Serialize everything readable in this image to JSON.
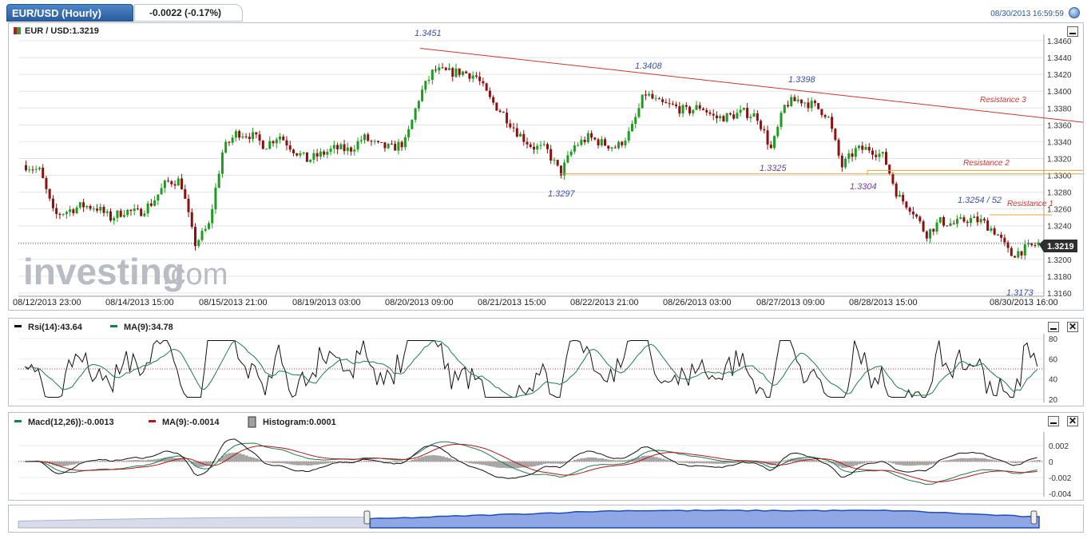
{
  "header": {
    "title": "EUR/USD (Hourly)",
    "change": "-0.0022 (-0.17%)",
    "timestamp": "08/30/2013 16:59:59"
  },
  "main_chart": {
    "label": "EUR / USD:1.3219",
    "last_price": "1.3219",
    "logo_text": "investing",
    "logo_suffix": ".com",
    "y_ticks": [
      "1.3460",
      "1.3440",
      "1.3420",
      "1.3400",
      "1.3380",
      "1.3360",
      "1.3340",
      "1.3320",
      "1.3300",
      "1.3280",
      "1.3260",
      "1.3240",
      "1.3220",
      "1.3200",
      "1.3180",
      "1.3160"
    ],
    "x_labels": [
      "08/12/2013 23:00",
      "08/14/2013 15:00",
      "08/15/2013 21:00",
      "08/19/2013 03:00",
      "08/20/2013 09:00",
      "08/21/2013 15:00",
      "08/22/2013 21:00",
      "08/26/2013 03:00",
      "08/27/2013 09:00",
      "08/28/2013 15:00",
      "08/30/2013 16:00"
    ],
    "annotations": [
      "1.3451",
      "1.3408",
      "1.3398",
      "1.3325",
      "1.3297",
      "1.3304",
      "1.3254 / 52",
      "1.3173"
    ],
    "resistance_labels": [
      "Resistance 3",
      "Resistance 2",
      "Resistance 1"
    ]
  },
  "rsi_panel": {
    "rsi_label": "Rsi(14):43.64",
    "ma_label": "MA(9):34.78",
    "y_ticks": [
      "80",
      "60",
      "40",
      "20"
    ]
  },
  "macd_panel": {
    "macd_label": "Macd(12,26)):-0.0013",
    "ma_label": "MA(9):-0.0014",
    "hist_label": "Histogram:0.0001",
    "y_ticks": [
      "0.002",
      "0",
      "-0.002",
      "-0.004"
    ]
  },
  "colors": {
    "up": "#1f9b1f",
    "down": "#8b1111",
    "resistance": "#d0352f",
    "support": "#e3a33a",
    "annotation": "#3d4fa8",
    "navigator": "#3a62c9"
  },
  "chart_data": {
    "type": "candlestick",
    "title": "EUR/USD (Hourly)",
    "ylim": [
      1.316,
      1.3465
    ],
    "x_labels": [
      "08/12/2013 23:00",
      "08/14/2013 15:00",
      "08/15/2013 21:00",
      "08/19/2013 03:00",
      "08/20/2013 09:00",
      "08/21/2013 15:00",
      "08/22/2013 21:00",
      "08/26/2013 03:00",
      "08/27/2013 09:00",
      "08/28/2013 15:00",
      "08/30/2013 16:00"
    ],
    "price_path": [
      1.3312,
      1.3305,
      1.3252,
      1.3258,
      1.3264,
      1.3262,
      1.3249,
      1.3258,
      1.3255,
      1.3268,
      1.3292,
      1.3294,
      1.3218,
      1.324,
      1.333,
      1.3351,
      1.3348,
      1.3335,
      1.3348,
      1.3331,
      1.3318,
      1.3325,
      1.3332,
      1.333,
      1.3345,
      1.3335,
      1.3332,
      1.334,
      1.3395,
      1.3425,
      1.3422,
      1.3423,
      1.3418,
      1.339,
      1.3372,
      1.335,
      1.3334,
      1.3331,
      1.3302,
      1.3335,
      1.3345,
      1.3338,
      1.3333,
      1.3352,
      1.3398,
      1.3385,
      1.3382,
      1.3376,
      1.3382,
      1.3368,
      1.337,
      1.3375,
      1.337,
      1.333,
      1.3385,
      1.339,
      1.3383,
      1.3372,
      1.331,
      1.333,
      1.3332,
      1.3322,
      1.3275,
      1.326,
      1.323,
      1.3245,
      1.3242,
      1.3248,
      1.3245,
      1.3232,
      1.3205,
      1.3212,
      1.3219
    ],
    "resistance_lines": [
      {
        "name": "Resistance 3",
        "from": 1.3451,
        "to": 1.3365
      },
      {
        "name": "Resistance 2",
        "value": 1.3304
      },
      {
        "name": "Resistance 1",
        "value": 1.3254
      }
    ],
    "support_lines": [
      {
        "value": 1.3297
      }
    ],
    "last_price": 1.3219,
    "rsi": {
      "name": "Rsi(14)",
      "last": 43.64,
      "ylim": [
        20,
        80
      ]
    },
    "rsi_ma": {
      "name": "MA(9)",
      "last": 34.78
    },
    "macd": {
      "name": "Macd(12,26))",
      "last": -0.0013,
      "ylim": [
        -0.004,
        0.0025
      ]
    },
    "macd_ma": {
      "name": "MA(9)",
      "last": -0.0014
    },
    "histogram": {
      "name": "Histogram",
      "last": 0.0001
    }
  }
}
